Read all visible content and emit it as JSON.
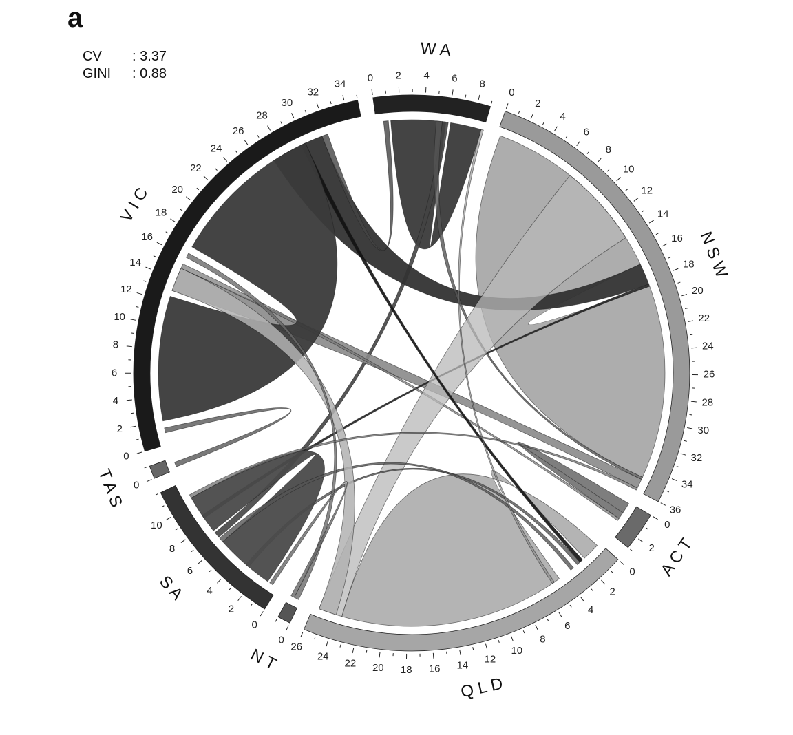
{
  "figure": {
    "panel_letter": "a",
    "stats": [
      {
        "key": "CV",
        "value": ": 3.37"
      },
      {
        "key": "GINI",
        "value": ": 0.88"
      }
    ]
  },
  "chart_data": {
    "type": "chord",
    "title": "",
    "sectors": [
      {
        "name": "WA",
        "label": "W A",
        "max": 9,
        "ticks": [
          0,
          2,
          4,
          6,
          8
        ],
        "color": "#222222"
      },
      {
        "name": "NSW",
        "label": "N S W",
        "max": 36,
        "ticks": [
          0,
          2,
          4,
          6,
          8,
          10,
          12,
          14,
          16,
          18,
          20,
          22,
          24,
          26,
          28,
          30,
          32,
          34,
          36
        ],
        "color": "#9a9a9a"
      },
      {
        "name": "ACT",
        "label": "A C T",
        "max": 3,
        "ticks": [
          0,
          2
        ],
        "color": "#6a6a6a"
      },
      {
        "name": "QLD",
        "label": "Q L D",
        "max": 26,
        "ticks": [
          0,
          2,
          4,
          6,
          8,
          10,
          12,
          14,
          16,
          18,
          20,
          22,
          24,
          26
        ],
        "color": "#a6a6a6"
      },
      {
        "name": "NT",
        "label": "N T",
        "max": 1,
        "ticks": [
          0
        ],
        "color": "#555555"
      },
      {
        "name": "SA",
        "label": "S A",
        "max": 12,
        "ticks": [
          0,
          2,
          4,
          6,
          8,
          10
        ],
        "color": "#333333"
      },
      {
        "name": "TAS",
        "label": "T A S",
        "max": 1,
        "ticks": [
          0
        ],
        "color": "#666666"
      },
      {
        "name": "VIC",
        "label": "V I C",
        "max": 35,
        "ticks": [
          0,
          2,
          4,
          6,
          8,
          10,
          12,
          14,
          16,
          18,
          20,
          22,
          24,
          26,
          28,
          30,
          32,
          34
        ],
        "color": "#1a1a1a"
      }
    ],
    "links": [
      {
        "from": "WA",
        "f0": 6.2,
        "f1": 8.8,
        "to": "WA",
        "t0": 1.2,
        "t1": 5.8,
        "color": "#3a3a3a",
        "opacity": 0.95
      },
      {
        "from": "WA",
        "f0": 5.5,
        "f1": 6.0,
        "to": "SA",
        "t0": 6.5,
        "t1": 7.0,
        "color": "#444444",
        "opacity": 0.9
      },
      {
        "from": "NSW",
        "f0": 0.3,
        "f1": 16.5,
        "to": "NSW",
        "t0": 18.5,
        "t1": 34.8,
        "color": "#a9a9a9",
        "opacity": 0.95
      },
      {
        "from": "NSW",
        "f0": 16.5,
        "f1": 18.3,
        "to": "VIC",
        "t0": 27.0,
        "t1": 31.5,
        "color": "#333333",
        "opacity": 0.95
      },
      {
        "from": "NSW",
        "f0": 35.0,
        "f1": 35.8,
        "to": "VIC",
        "t0": 13.0,
        "t1": 15.0,
        "color": "#8a8a8a",
        "opacity": 0.9
      },
      {
        "from": "NSW",
        "f0": 34.8,
        "f1": 35.0,
        "to": "WA",
        "t0": 5.0,
        "t1": 5.5,
        "color": "#555555",
        "opacity": 0.8
      },
      {
        "from": "NSW",
        "f0": 18.3,
        "f1": 18.5,
        "to": "SA",
        "t0": 8.5,
        "t1": 8.8,
        "color": "#222222",
        "opacity": 0.9
      },
      {
        "from": "ACT",
        "f0": 0.1,
        "f1": 1.0,
        "to": "ACT",
        "t0": 1.0,
        "t1": 1.6,
        "color": "#707070",
        "opacity": 0.9
      },
      {
        "from": "ACT",
        "f0": 1.6,
        "f1": 1.8,
        "to": "VIC",
        "t0": 15.0,
        "t1": 15.4,
        "color": "#777777",
        "opacity": 0.7
      },
      {
        "from": "QLD",
        "f0": 4.5,
        "f1": 23.5,
        "to": "QLD",
        "t0": 0.3,
        "t1": 1.8,
        "color": "#b0b0b0",
        "opacity": 0.95
      },
      {
        "from": "QLD",
        "f0": 23.5,
        "f1": 25.5,
        "to": "NSW",
        "t0": 7.0,
        "t1": 14.0,
        "color": "#b8b8b8",
        "opacity": 0.75
      },
      {
        "from": "QLD",
        "f0": 2.0,
        "f1": 2.3,
        "to": "VIC",
        "t0": 29.6,
        "t1": 30.0,
        "color": "#111111",
        "opacity": 0.9
      },
      {
        "from": "QLD",
        "f0": 2.3,
        "f1": 2.6,
        "to": "SA",
        "t0": 3.0,
        "t1": 3.3,
        "color": "#555555",
        "opacity": 0.8
      },
      {
        "from": "SA",
        "f0": 1.0,
        "f1": 6.0,
        "to": "SA",
        "t0": 7.2,
        "t1": 10.5,
        "color": "#4a4a4a",
        "opacity": 0.95
      },
      {
        "from": "SA",
        "f0": 6.0,
        "f1": 6.4,
        "to": "QLD",
        "t0": 3.0,
        "t1": 3.3,
        "color": "#555555",
        "opacity": 0.8
      },
      {
        "from": "VIC",
        "f0": 17.0,
        "f1": 30.0,
        "to": "VIC",
        "t0": 2.0,
        "t1": 12.5,
        "color": "#3a3a3a",
        "opacity": 0.95
      },
      {
        "from": "VIC",
        "f0": 13.0,
        "f1": 15.0,
        "to": "QLD",
        "t0": 24.0,
        "t1": 25.5,
        "color": "#b2b2b2",
        "opacity": 0.85
      },
      {
        "from": "VIC",
        "f0": 16.0,
        "f1": 16.4,
        "to": "NT",
        "t0": 0.2,
        "t1": 0.6,
        "color": "#6a6a6a",
        "opacity": 0.8
      },
      {
        "from": "VIC",
        "f0": 1.0,
        "f1": 1.4,
        "to": "TAS",
        "t0": 0.2,
        "t1": 0.6,
        "color": "#6a6a6a",
        "opacity": 0.9
      },
      {
        "from": "VIC",
        "f0": 31.5,
        "f1": 32.0,
        "to": "WA",
        "t0": 0.6,
        "t1": 1.0,
        "color": "#444444",
        "opacity": 0.8
      },
      {
        "from": "WA",
        "f0": 8.8,
        "f1": 9.0,
        "to": "QLD",
        "t0": 5.0,
        "t1": 5.2,
        "color": "#888888",
        "opacity": 0.6
      },
      {
        "from": "SA",
        "f0": 10.5,
        "f1": 10.8,
        "to": "NSW",
        "t0": 35.8,
        "t1": 36.0,
        "color": "#666666",
        "opacity": 0.7
      },
      {
        "from": "NT",
        "f0": 0.6,
        "f1": 0.9,
        "to": "SA",
        "t0": 0.5,
        "t1": 0.8,
        "color": "#666666",
        "opacity": 0.8
      }
    ]
  }
}
